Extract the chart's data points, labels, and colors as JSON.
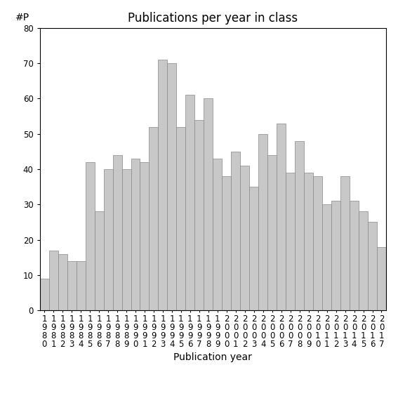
{
  "title": "Publications per year in class",
  "xlabel": "Publication year",
  "ylabel": "#P",
  "years": [
    1980,
    1981,
    1982,
    1983,
    1984,
    1985,
    1986,
    1987,
    1988,
    1989,
    1990,
    1991,
    1992,
    1993,
    1994,
    1995,
    1996,
    1997,
    1998,
    1999,
    2000,
    2001,
    2002,
    2003,
    2004,
    2005,
    2006,
    2007,
    2008,
    2009,
    2010,
    2011,
    2012,
    2013,
    2014,
    2015,
    2016,
    2017
  ],
  "values": [
    9,
    17,
    16,
    14,
    14,
    42,
    28,
    40,
    44,
    40,
    43,
    42,
    52,
    71,
    70,
    52,
    61,
    54,
    60,
    43,
    38,
    45,
    41,
    35,
    50,
    44,
    53,
    39,
    48,
    39,
    38,
    30,
    31,
    38,
    31,
    28,
    25,
    18
  ],
  "bar_color": "#c8c8c8",
  "bar_edge_color": "#888888",
  "ylim": [
    0,
    80
  ],
  "yticks": [
    0,
    10,
    20,
    30,
    40,
    50,
    60,
    70,
    80
  ],
  "background_color": "#ffffff",
  "title_fontsize": 12,
  "axis_label_fontsize": 10,
  "tick_fontsize": 8.5
}
